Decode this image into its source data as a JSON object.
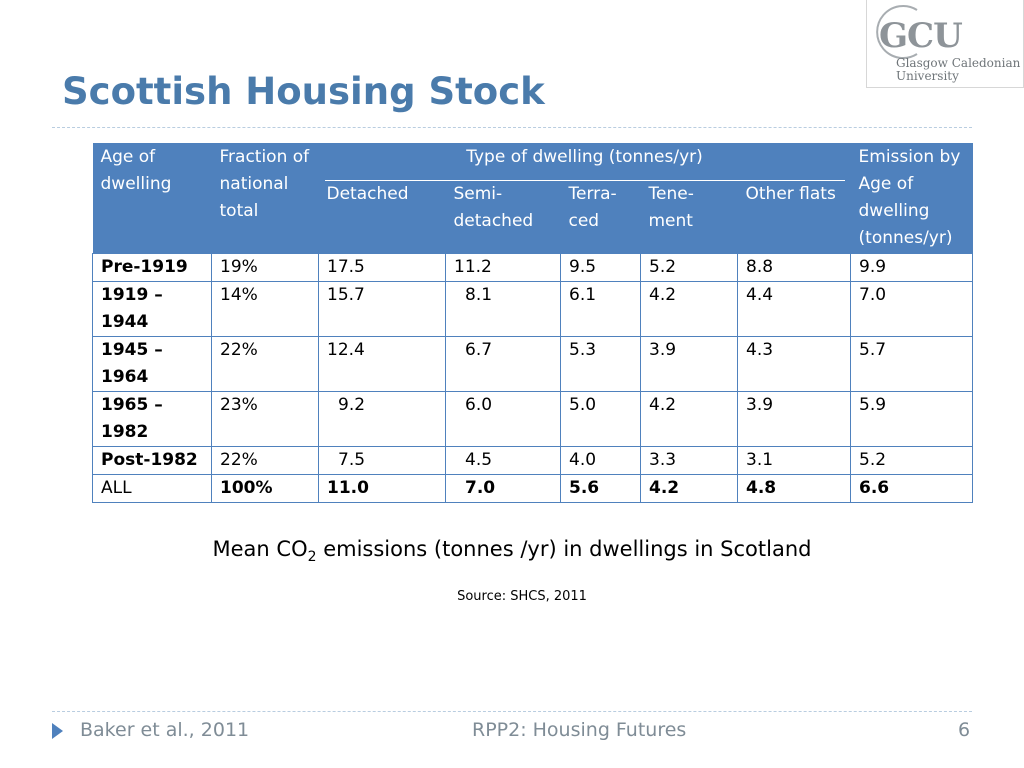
{
  "slide": {
    "title": "Scottish Housing Stock",
    "page_number": "6"
  },
  "logo": {
    "mark": "GCU",
    "line1": "Glasgow Caledonian",
    "line2": "University"
  },
  "table": {
    "header": {
      "age": "Age of dwelling",
      "fraction": "Fraction of national total",
      "type_group": "Type of dwelling (tonnes/yr)",
      "detached": "Detached",
      "semi": "Semi-detached",
      "terraced": "Terra-ced",
      "tenement": "Tene-ment",
      "other": "Other flats",
      "emission": "Emission by Age of dwelling (tonnes/yr)"
    },
    "rows": [
      {
        "age": "Pre-1919",
        "fraction": "19%",
        "detached": "17.5",
        "semi": "11.2",
        "terraced": "9.5",
        "tenement": "5.2",
        "other": "8.8",
        "emission": "9.9"
      },
      {
        "age": "1919 – 1944",
        "fraction": "14%",
        "detached": "15.7",
        "semi": "8.1",
        "terraced": "6.1",
        "tenement": "4.2",
        "other": "4.4",
        "emission": "7.0"
      },
      {
        "age": "1945 – 1964",
        "fraction": "22%",
        "detached": "12.4",
        "semi": "6.7",
        "terraced": "5.3",
        "tenement": "3.9",
        "other": "4.3",
        "emission": "5.7"
      },
      {
        "age": "1965 – 1982",
        "fraction": "23%",
        "detached": "9.2",
        "semi": "6.0",
        "terraced": "5.0",
        "tenement": "4.2",
        "other": "3.9",
        "emission": "5.9"
      },
      {
        "age": "Post-1982",
        "fraction": "22%",
        "detached": "7.5",
        "semi": "4.5",
        "terraced": "4.0",
        "tenement": "3.3",
        "other": "3.1",
        "emission": "5.2"
      },
      {
        "age": "ALL",
        "fraction": "100%",
        "detached": "11.0",
        "semi": "7.0",
        "terraced": "5.6",
        "tenement": "4.2",
        "other": "4.8",
        "emission": "6.6"
      }
    ]
  },
  "caption": {
    "before": "Mean CO",
    "sub": "2",
    "after": " emissions (tonnes /yr) in dwellings in Scotland"
  },
  "source": "Source: SHCS, 2011",
  "footer": {
    "left": "Baker et al., 2011",
    "center": "RPP2: Housing Futures"
  },
  "colors": {
    "title": "#4a7bab",
    "table_header_bg": "#4f81bd",
    "footer_text": "#7f8c96"
  }
}
